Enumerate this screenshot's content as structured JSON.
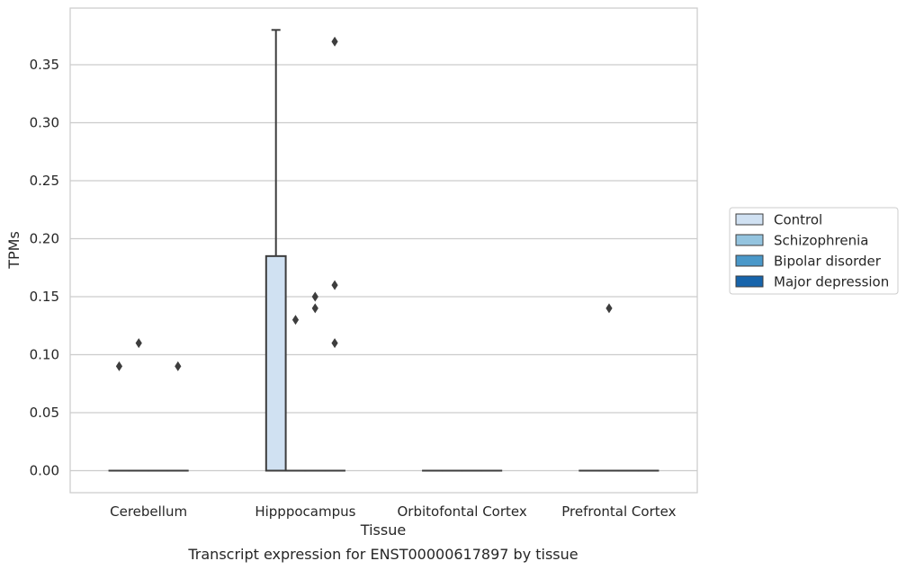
{
  "chart_data": {
    "type": "box",
    "title": "",
    "caption": "Transcript expression for ENST00000617897 by tissue",
    "xlabel": "Tissue",
    "ylabel": "TPMs",
    "ylim": [
      -0.018,
      0.39
    ],
    "yticks": [
      "0.00",
      "0.05",
      "0.10",
      "0.15",
      "0.20",
      "0.25",
      "0.30",
      "0.35"
    ],
    "ytick_values": [
      0,
      0.05,
      0.1,
      0.15,
      0.2,
      0.25,
      0.3,
      0.35
    ],
    "grid": "horizontal",
    "legend_position": "right",
    "categories": [
      "Cerebellum",
      "Hipppocampus",
      "Orbitofontal Cortex",
      "Prefrontal Cortex"
    ],
    "series": [
      {
        "name": "Control",
        "color": "#d0e1f2",
        "boxes": [
          {
            "category": "Cerebellum",
            "q1": 0,
            "median": 0,
            "q3": 0,
            "whisker_low": 0,
            "whisker_high": 0,
            "outliers": [
              0.09
            ]
          },
          {
            "category": "Hipppocampus",
            "q1": 0,
            "median": 0,
            "q3": 0.185,
            "whisker_low": 0,
            "whisker_high": 0.38,
            "outliers": []
          },
          {
            "category": "Orbitofontal Cortex",
            "q1": 0,
            "median": 0,
            "q3": 0,
            "whisker_low": 0,
            "whisker_high": 0,
            "outliers": []
          },
          {
            "category": "Prefrontal Cortex",
            "q1": 0,
            "median": 0,
            "q3": 0,
            "whisker_low": 0,
            "whisker_high": 0,
            "outliers": []
          }
        ]
      },
      {
        "name": "Schizophrenia",
        "color": "#94c4df",
        "boxes": [
          {
            "category": "Cerebellum",
            "q1": 0,
            "median": 0,
            "q3": 0,
            "whisker_low": 0,
            "whisker_high": 0,
            "outliers": [
              0.11
            ]
          },
          {
            "category": "Hipppocampus",
            "q1": 0,
            "median": 0,
            "q3": 0,
            "whisker_low": 0,
            "whisker_high": 0,
            "outliers": [
              0.13
            ]
          },
          {
            "category": "Orbitofontal Cortex",
            "q1": 0,
            "median": 0,
            "q3": 0,
            "whisker_low": 0,
            "whisker_high": 0,
            "outliers": []
          },
          {
            "category": "Prefrontal Cortex",
            "q1": 0,
            "median": 0,
            "q3": 0,
            "whisker_low": 0,
            "whisker_high": 0,
            "outliers": [
              0.14
            ]
          }
        ]
      },
      {
        "name": "Bipolar disorder",
        "color": "#4a98c9",
        "boxes": [
          {
            "category": "Cerebellum",
            "q1": 0,
            "median": 0,
            "q3": 0,
            "whisker_low": 0,
            "whisker_high": 0,
            "outliers": []
          },
          {
            "category": "Hipppocampus",
            "q1": 0,
            "median": 0,
            "q3": 0,
            "whisker_low": 0,
            "whisker_high": 0,
            "outliers": [
              0.15,
              0.14
            ]
          },
          {
            "category": "Orbitofontal Cortex",
            "q1": 0,
            "median": 0,
            "q3": 0,
            "whisker_low": 0,
            "whisker_high": 0,
            "outliers": []
          },
          {
            "category": "Prefrontal Cortex",
            "q1": 0,
            "median": 0,
            "q3": 0,
            "whisker_low": 0,
            "whisker_high": 0,
            "outliers": []
          }
        ]
      },
      {
        "name": "Major depression",
        "color": "#1764ab",
        "boxes": [
          {
            "category": "Cerebellum",
            "q1": 0,
            "median": 0,
            "q3": 0,
            "whisker_low": 0,
            "whisker_high": 0,
            "outliers": [
              0.09
            ]
          },
          {
            "category": "Hipppocampus",
            "q1": 0,
            "median": 0,
            "q3": 0,
            "whisker_low": 0,
            "whisker_high": 0,
            "outliers": [
              0.37,
              0.16,
              0.11
            ]
          },
          {
            "category": "Orbitofontal Cortex",
            "q1": 0,
            "median": 0,
            "q3": 0,
            "whisker_low": 0,
            "whisker_high": 0,
            "outliers": []
          },
          {
            "category": "Prefrontal Cortex",
            "q1": 0,
            "median": 0,
            "q3": 0,
            "whisker_low": 0,
            "whisker_high": 0,
            "outliers": []
          }
        ]
      }
    ]
  }
}
